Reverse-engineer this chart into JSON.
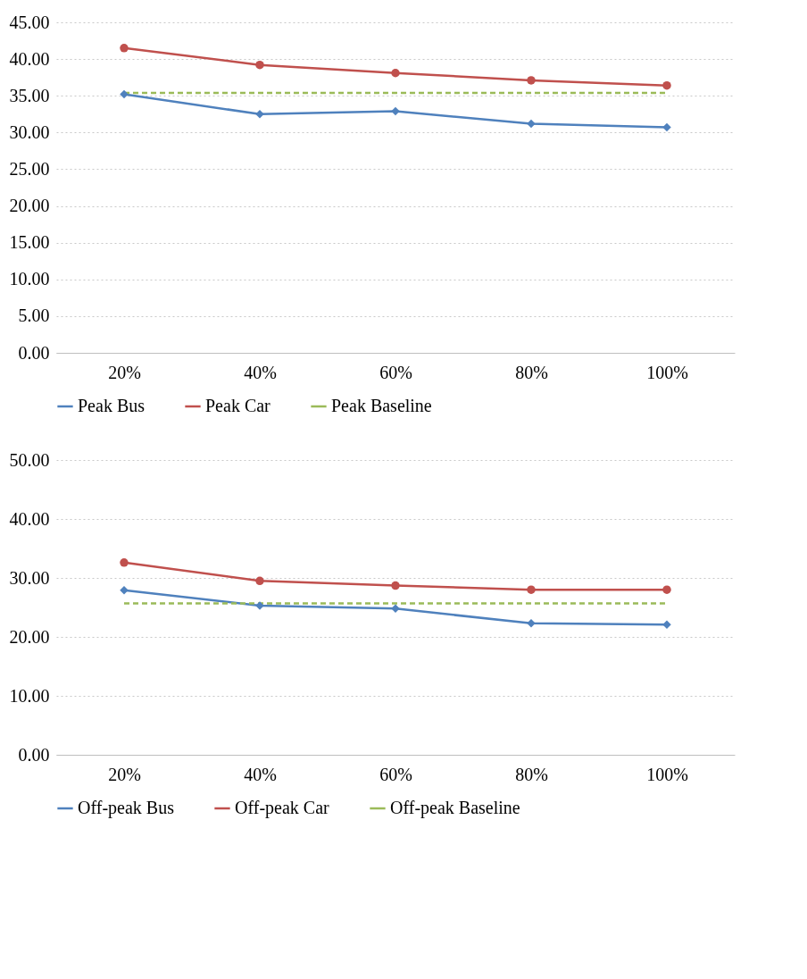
{
  "chart_data": [
    {
      "type": "line",
      "categories": [
        "20%",
        "40%",
        "60%",
        "80%",
        "100%"
      ],
      "ylim": [
        0,
        45
      ],
      "yticks": [
        {
          "value": 0,
          "label": "0.00"
        },
        {
          "value": 5,
          "label": "5.00"
        },
        {
          "value": 10,
          "label": "10.00"
        },
        {
          "value": 15,
          "label": "15.00"
        },
        {
          "value": 20,
          "label": "20.00"
        },
        {
          "value": 25,
          "label": "25.00"
        },
        {
          "value": 30,
          "label": "30.00"
        },
        {
          "value": 35,
          "label": "35.00"
        },
        {
          "value": 40,
          "label": "40.00"
        },
        {
          "value": 45,
          "label": "45.00"
        }
      ],
      "grid": "y",
      "legend": "bottom",
      "series": [
        {
          "name": "Peak Bus",
          "color": "#4f81bd",
          "marker": "diamond",
          "line_style": "solid",
          "values": [
            35.2,
            32.5,
            32.9,
            31.2,
            30.7
          ]
        },
        {
          "name": "Peak Car",
          "color": "#c0504d",
          "marker": "circle",
          "line_style": "solid",
          "values": [
            41.5,
            39.2,
            38.1,
            37.1,
            36.4
          ]
        },
        {
          "name": "Peak Baseline",
          "color": "#9bbb59",
          "marker": "none",
          "line_style": "dashed",
          "values": [
            35.4,
            35.4,
            35.4,
            35.4,
            35.4
          ]
        }
      ]
    },
    {
      "type": "line",
      "categories": [
        "20%",
        "40%",
        "60%",
        "80%",
        "100%"
      ],
      "ylim": [
        0,
        50
      ],
      "yticks": [
        {
          "value": 0,
          "label": "0.00"
        },
        {
          "value": 10,
          "label": "10.00"
        },
        {
          "value": 20,
          "label": "20.00"
        },
        {
          "value": 30,
          "label": "30.00"
        },
        {
          "value": 40,
          "label": "40.00"
        },
        {
          "value": 50,
          "label": "50.00"
        }
      ],
      "grid": "y",
      "legend": "bottom",
      "series": [
        {
          "name": "Off-peak Bus",
          "color": "#4f81bd",
          "marker": "diamond",
          "line_style": "solid",
          "values": [
            27.9,
            25.3,
            24.8,
            22.3,
            22.1
          ]
        },
        {
          "name": "Off-peak Car",
          "color": "#c0504d",
          "marker": "circle",
          "line_style": "solid",
          "values": [
            32.6,
            29.5,
            28.7,
            28.0,
            28.0
          ]
        },
        {
          "name": "Off-peak Baseline",
          "color": "#9bbb59",
          "marker": "none",
          "line_style": "dashed",
          "values": [
            25.7,
            25.7,
            25.7,
            25.7,
            25.7
          ]
        }
      ]
    }
  ]
}
